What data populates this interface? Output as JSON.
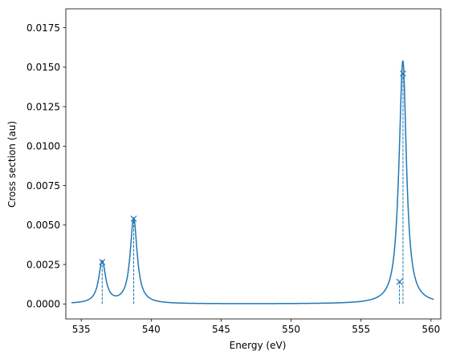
{
  "chart_data": {
    "type": "line",
    "title": "",
    "xlabel": "Energy (eV)",
    "ylabel": "Cross section (au)",
    "xlim": [
      533.9,
      560.7
    ],
    "ylim": [
      -0.00095,
      0.0187
    ],
    "xticks": [
      535,
      540,
      545,
      550,
      555,
      560
    ],
    "xtick_labels": [
      "535",
      "540",
      "545",
      "550",
      "555",
      "560"
    ],
    "yticks": [
      0.0,
      0.0025,
      0.005,
      0.0075,
      0.01,
      0.0125,
      0.015,
      0.0175
    ],
    "ytick_labels": [
      "0.0000",
      "0.0025",
      "0.0050",
      "0.0075",
      "0.0100",
      "0.0125",
      "0.0150",
      "0.0175"
    ],
    "grid": false,
    "color": "#1f77b4",
    "peaks": [
      {
        "energy": 536.5,
        "height": 0.00265,
        "width": 0.3
      },
      {
        "energy": 538.75,
        "height": 0.0054,
        "width": 0.3
      },
      {
        "energy": 557.75,
        "height": 0.0014,
        "width": 0.3
      },
      {
        "energy": 558.0,
        "height": 0.0146,
        "width": 0.3
      }
    ],
    "curve": {
      "x_range": [
        534.3,
        560.2
      ],
      "samples": 700
    }
  }
}
